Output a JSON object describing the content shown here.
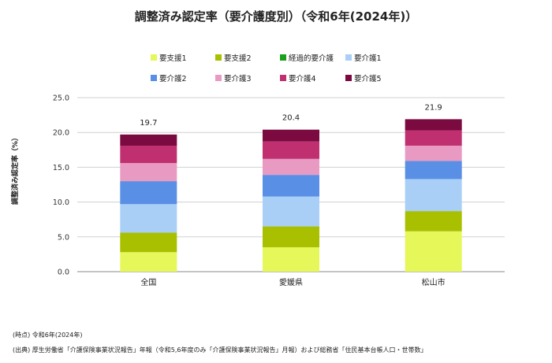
{
  "chart_data": {
    "type": "bar",
    "stacked": true,
    "title": "調整済み認定率（要介護度別）（令和6年(2024年)）",
    "ylabel": "調整済み認定率（%）",
    "xlabel": "",
    "ylim": [
      0,
      25
    ],
    "yticks": [
      "0.0",
      "5.0",
      "10.0",
      "15.0",
      "20.0",
      "25.0"
    ],
    "categories": [
      "全国",
      "愛媛県",
      "松山市"
    ],
    "totals": [
      "19.7",
      "20.4",
      "21.9"
    ],
    "legend_position": "top",
    "series": [
      {
        "name": "要支援1",
        "color": "#e6f75a",
        "values": [
          2.8,
          3.5,
          5.8
        ]
      },
      {
        "name": "要支援2",
        "color": "#a9c000",
        "values": [
          2.8,
          3.0,
          2.9
        ]
      },
      {
        "name": "経過的要介護",
        "color": "#1aa01a",
        "values": [
          0.0,
          0.0,
          0.0
        ]
      },
      {
        "name": "要介護1",
        "color": "#a9cff7",
        "values": [
          4.1,
          4.3,
          4.6
        ]
      },
      {
        "name": "要介護2",
        "color": "#5a8fe6",
        "values": [
          3.3,
          3.1,
          2.6
        ]
      },
      {
        "name": "要介護3",
        "color": "#e89ac2",
        "values": [
          2.6,
          2.3,
          2.2
        ]
      },
      {
        "name": "要介護4",
        "color": "#c03070",
        "values": [
          2.5,
          2.5,
          2.2
        ]
      },
      {
        "name": "要介護5",
        "color": "#7a0a40",
        "values": [
          1.6,
          1.7,
          1.6
        ]
      }
    ]
  },
  "notes": {
    "time": "(時点)  令和6年(2024年)",
    "source": "(出典)  厚生労働省「介護保険事業状況報告」年報（令和5,6年度のみ「介護保険事業状況報告」月報）および総務省「住民基本台帳人口・世帯数」"
  }
}
